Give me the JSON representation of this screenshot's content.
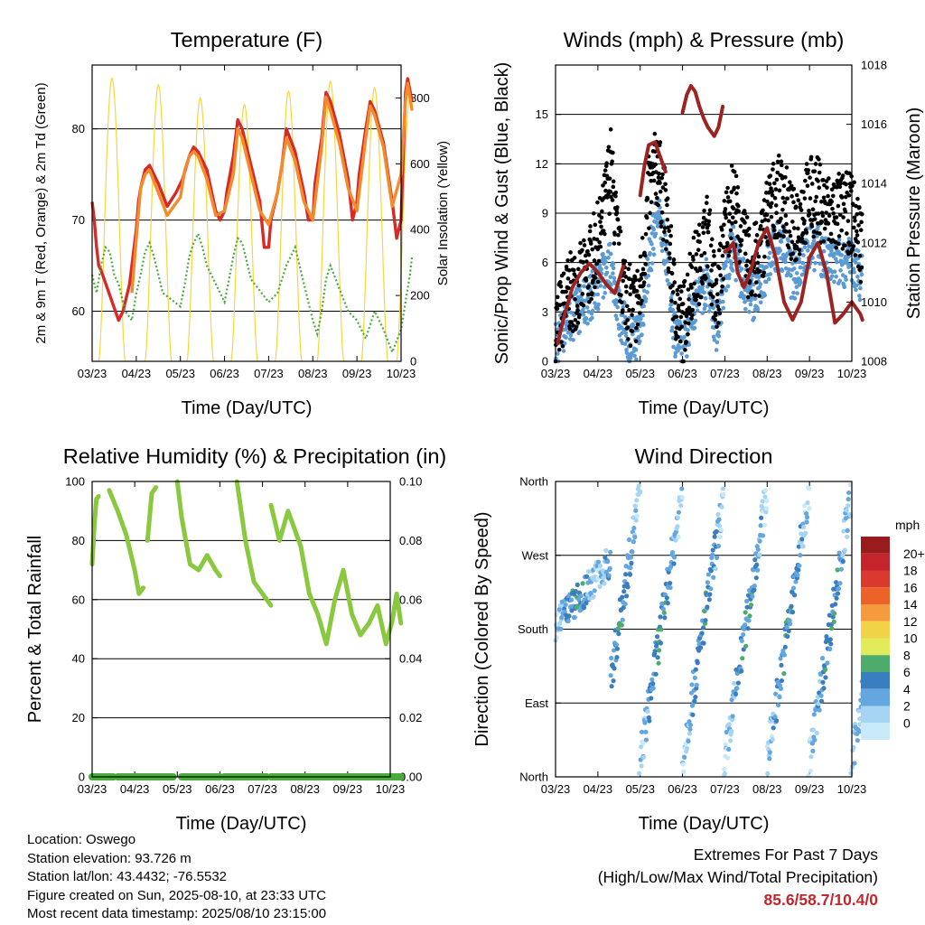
{
  "chart_data": [
    {
      "id": "temp",
      "type": "line",
      "title": "Temperature (F)",
      "xlabel": "Time (Day/UTC)",
      "ylabel": "2m & 9m T (Red, Orange) & 2m Td (Green)",
      "ylabel_right": "Solar Insolation (Yellow)",
      "x_ticks": [
        "03/23",
        "04/23",
        "05/23",
        "06/23",
        "07/23",
        "08/23",
        "09/23",
        "10/23"
      ],
      "ylim": [
        54.5,
        87
      ],
      "y_ticks": [
        60,
        70,
        80
      ],
      "ylim_right": [
        0,
        900
      ],
      "y_ticks_right": [
        0,
        200,
        400,
        600,
        800
      ],
      "grid": "horizontal",
      "series": [
        {
          "key": "t2m",
          "color": "#d62a27",
          "x": [
            0,
            0.05,
            0.1,
            0.15,
            0.2,
            0.6,
            0.7,
            0.85,
            1,
            1.05,
            1.1,
            1.2,
            1.3,
            1.5,
            1.7,
            1.9,
            2,
            2.05,
            2.2,
            2.3,
            2.4,
            2.6,
            2.8,
            2.9,
            3,
            3.05,
            3.2,
            3.3,
            3.4,
            3.6,
            3.8,
            3.9,
            4,
            4.05,
            4.2,
            4.3,
            4.4,
            4.6,
            4.8,
            4.9,
            5,
            5.05,
            5.2,
            5.3,
            5.4,
            5.6,
            5.8,
            5.9,
            6,
            6.05,
            6.2,
            6.3,
            6.4,
            6.6,
            6.8,
            6.9,
            7,
            7.05,
            7.1,
            7.15,
            7.25
          ],
          "values": [
            72,
            70,
            67,
            65,
            64.5,
            59,
            60,
            63,
            69,
            72,
            73.5,
            75.5,
            76,
            74,
            71.5,
            73,
            74,
            74.5,
            77,
            78,
            77.5,
            75.5,
            71,
            70,
            71,
            73,
            77,
            81,
            80,
            76,
            72,
            67,
            67,
            70,
            73,
            76,
            80,
            77.5,
            73,
            70,
            70,
            74,
            79,
            84,
            83,
            79.5,
            74.5,
            70,
            72,
            75,
            80,
            83,
            82,
            78.5,
            72,
            68,
            70,
            77,
            84,
            85.5,
            83
          ]
        },
        {
          "key": "t9m",
          "color": "#f28b2c",
          "x": [
            0.9,
            1,
            1.1,
            1.2,
            1.3,
            1.5,
            1.7,
            2,
            2.1,
            2.2,
            2.3,
            2.4,
            2.6,
            2.8,
            3,
            3.2,
            3.3,
            3.4,
            3.6,
            3.8,
            4,
            4.2,
            4.3,
            4.4,
            4.6,
            4.8,
            5,
            5.2,
            5.3,
            5.4,
            5.6,
            5.8,
            6,
            6.2,
            6.3,
            6.4,
            6.6,
            6.8,
            7,
            7.1,
            7.15,
            7.25
          ],
          "values": [
            62,
            68,
            73.5,
            75,
            75.5,
            73,
            70.5,
            72.5,
            75.5,
            77,
            77.5,
            77,
            74.5,
            70.5,
            71,
            75,
            80,
            79,
            75,
            71,
            69.5,
            73,
            76,
            79,
            76.5,
            72,
            70,
            78,
            83.5,
            82,
            78.5,
            73.5,
            71,
            79,
            82.5,
            81.5,
            78,
            71.5,
            75,
            83,
            85,
            82
          ]
        },
        {
          "key": "td",
          "color": "#4aaa3c",
          "x": [
            0,
            0.1,
            0.2,
            0.3,
            0.4,
            0.5,
            0.6,
            0.75,
            0.9,
            1,
            1.1,
            1.2,
            1.3,
            1.4,
            1.5,
            1.6,
            2,
            2.1,
            2.2,
            2.3,
            2.4,
            2.5,
            2.6,
            3,
            3.1,
            3.2,
            3.3,
            3.4,
            3.5,
            3.6,
            4,
            4.2,
            4.4,
            4.6,
            4.8,
            5,
            5.1,
            5.2,
            5.3,
            5.4,
            5.6,
            5.8,
            6,
            6.2,
            6.4,
            6.6,
            6.8,
            7,
            7.1,
            7.2,
            7.25
          ],
          "values": [
            64,
            62,
            65,
            67,
            66.5,
            64,
            63,
            60,
            59,
            62,
            64,
            66.5,
            67.5,
            66,
            64,
            62,
            60.5,
            63,
            66,
            67.5,
            68.5,
            67,
            65,
            61,
            63.5,
            66,
            68,
            67.5,
            65.5,
            63.5,
            61,
            62,
            65,
            67,
            63,
            59,
            57.5,
            60,
            63.5,
            65,
            62.5,
            60,
            59,
            57,
            60,
            58,
            55.5,
            58,
            61,
            64,
            66
          ]
        }
      ],
      "solar": {
        "color": "#f7d53e",
        "peaks": [
          860,
          840,
          800,
          780,
          820,
          850,
          830,
          800
        ],
        "offsets": [
          0.45,
          1.5,
          2.45,
          3.45,
          4.45,
          5.4,
          6.4,
          7.2
        ]
      }
    },
    {
      "id": "wind",
      "type": "scatter",
      "title": "Winds (mph) & Pressure (mb)",
      "xlabel": "Time (Day/UTC)",
      "ylabel": "Sonic/Prop Wind & Gust (Blue, Black)",
      "ylabel_right": "Station Pressure (Maroon)",
      "x_ticks": [
        "03/23",
        "04/23",
        "05/23",
        "06/23",
        "07/23",
        "08/23",
        "09/23",
        "10/23"
      ],
      "ylim": [
        0,
        18
      ],
      "y_ticks": [
        0,
        3,
        6,
        9,
        12,
        15
      ],
      "ylim_right": [
        1008,
        1018
      ],
      "y_ticks_right": [
        1008,
        1010,
        1012,
        1014,
        1016,
        1018
      ],
      "grid": "horizontal",
      "gust_color": "#000000",
      "wind_color": "#5b9bd5",
      "gust_env": {
        "x": [
          0,
          0.3,
          0.7,
          1.1,
          1.3,
          1.5,
          1.8,
          2,
          2.2,
          2.4,
          2.6,
          2.8,
          3,
          3.2,
          3.4,
          3.6,
          3.8,
          4,
          4.2,
          4.4,
          4.6,
          4.8,
          5,
          5.2,
          5.4,
          5.6,
          5.8,
          6,
          6.2,
          6.4,
          6.6,
          6.8,
          7,
          7.25
        ],
        "values": [
          2,
          4,
          5,
          8,
          12,
          6,
          3,
          4,
          10,
          12,
          9,
          4,
          2,
          5,
          6,
          8,
          3,
          8,
          10,
          7,
          6,
          6,
          9,
          10,
          10,
          8,
          9,
          10,
          10,
          9,
          9,
          9,
          9,
          7
        ]
      },
      "wind_env": {
        "x": [
          0,
          0.3,
          0.7,
          1.1,
          1.3,
          1.5,
          1.8,
          2,
          2.2,
          2.4,
          2.6,
          2.8,
          3,
          3.2,
          3.4,
          3.6,
          3.8,
          4,
          4.2,
          4.4,
          4.6,
          4.8,
          5,
          5.2,
          5.4,
          5.6,
          5.8,
          6,
          6.2,
          6.4,
          6.6,
          6.8,
          7,
          7.25
        ],
        "values": [
          1,
          2.5,
          3.5,
          5,
          6,
          3,
          1,
          2,
          6,
          9,
          7,
          2,
          0.5,
          3,
          4,
          5,
          2,
          5,
          7,
          5,
          4,
          4,
          6,
          7,
          7,
          5,
          6,
          7,
          7,
          6,
          6,
          6,
          6,
          5
        ]
      },
      "pressure": {
        "color": "#9b2422",
        "segments": [
          {
            "x": [
              0,
              0.05,
              0.2,
              0.4,
              0.6,
              0.8,
              1,
              1.2,
              1.4,
              1.6
            ],
            "values": [
              1008.7,
              1008.6,
              1009.5,
              1010.5,
              1011,
              1011.3,
              1011,
              1010.6,
              1010.3,
              1011.2
            ]
          },
          {
            "x": [
              2,
              2.1,
              2.2,
              2.35,
              2.5,
              2.6
            ],
            "values": [
              1013.6,
              1014.6,
              1015.3,
              1015.4,
              1014.8,
              1014.4
            ]
          },
          {
            "x": [
              3,
              3.1,
              3.2,
              3.3,
              3.4,
              3.5,
              3.6,
              3.75,
              3.85,
              3.95
            ],
            "values": [
              1016.4,
              1017,
              1017.3,
              1017.1,
              1016.6,
              1016.2,
              1015.9,
              1015.6,
              1015.9,
              1016.6
            ]
          },
          {
            "x": [
              4,
              4.1,
              4.2,
              4.3,
              4.45,
              4.6,
              4.8,
              5,
              5.2,
              5.4,
              5.6,
              5.8,
              6,
              6.2,
              6.4,
              6.6,
              6.8,
              7,
              7.2,
              7.25
            ],
            "values": [
              1011.7,
              1011.8,
              1012,
              1011,
              1010.5,
              1011,
              1012,
              1012.5,
              1011.5,
              1010,
              1009.4,
              1010,
              1011.5,
              1012,
              1011,
              1009.3,
              1009.6,
              1010,
              1009.6,
              1009.4
            ]
          }
        ]
      }
    },
    {
      "id": "rh",
      "type": "line",
      "title": "Relative Humidity (%) & Precipitation (in)",
      "xlabel": "Time (Day/UTC)",
      "ylabel": "Percent & Total Rainfall",
      "x_ticks": [
        "03/23",
        "04/23",
        "05/23",
        "06/23",
        "07/23",
        "08/23",
        "09/23",
        "10/23"
      ],
      "ylim": [
        0,
        100
      ],
      "y_ticks": [
        0,
        20,
        40,
        60,
        80,
        100
      ],
      "ylim_right": [
        0,
        0.1
      ],
      "y_ticks_right": [
        "0.00",
        "0.02",
        "0.04",
        "0.06",
        "0.08",
        "0.10"
      ],
      "grid": "horizontal",
      "series": [
        {
          "key": "rh",
          "color": "#8ac840",
          "segments": [
            {
              "x": [
                0,
                0.05,
                0.1,
                0.15
              ],
              "values": [
                72,
                85,
                94,
                95
              ]
            },
            {
              "x": [
                0.4,
                0.6,
                0.8,
                1,
                1.1,
                1.2
              ],
              "values": [
                97,
                90,
                82,
                70,
                62,
                64
              ]
            },
            {
              "x": [
                1.3,
                1.4,
                1.5
              ],
              "values": [
                80,
                96,
                98
              ]
            },
            {
              "x": [
                2,
                2.1,
                2.3,
                2.5,
                2.7,
                2.9,
                3
              ],
              "values": [
                100,
                88,
                72,
                70,
                75,
                70,
                68
              ]
            },
            {
              "x": [
                3.4,
                3.6,
                3.8,
                4,
                4.2
              ],
              "values": [
                100,
                80,
                66,
                62,
                58
              ]
            },
            {
              "x": [
                4.2,
                4.4,
                4.6,
                4.9,
                5.1,
                5.3,
                5.5,
                5.7,
                5.9,
                6.1,
                6.3,
                6.5,
                6.7,
                6.9,
                7.05,
                7.15,
                7.25
              ],
              "values": [
                92,
                80,
                90,
                78,
                62,
                55,
                45,
                60,
                70,
                55,
                48,
                52,
                58,
                45,
                53,
                62,
                52
              ]
            }
          ]
        },
        {
          "key": "precip",
          "color": "#4aaa3c",
          "segments": [
            {
              "x": [
                0,
                0.5
              ],
              "values": [
                0,
                0
              ]
            },
            {
              "x": [
                0.6,
                1.9
              ],
              "values": [
                0,
                0
              ]
            },
            {
              "x": [
                2.1,
                3.0
              ],
              "values": [
                0,
                0
              ]
            },
            {
              "x": [
                3.1,
                4.1
              ],
              "values": [
                0,
                0
              ]
            },
            {
              "x": [
                4.2,
                7.25
              ],
              "values": [
                0,
                0
              ]
            }
          ]
        }
      ]
    },
    {
      "id": "dir",
      "type": "scatter",
      "title": "Wind Direction",
      "xlabel": "Time (Day/UTC)",
      "ylabel": "Direction (Colored By Speed)",
      "x_ticks": [
        "03/23",
        "04/23",
        "05/23",
        "06/23",
        "07/23",
        "08/23",
        "09/23",
        "10/23"
      ],
      "ylim": [
        0,
        360
      ],
      "y_ticks": [
        "North",
        "East",
        "South",
        "West",
        "North"
      ],
      "grid": "horizontal",
      "colorbar": {
        "unit": "mph",
        "labels": [
          "20+",
          "18",
          "16",
          "14",
          "12",
          "10",
          "8",
          "6",
          "4",
          "2",
          "0"
        ],
        "colors": [
          "#9a1b1e",
          "#c4242b",
          "#d93a2d",
          "#ec6228",
          "#f59a3d",
          "#f2d347",
          "#e1ea59",
          "#4dab6c",
          "#3a7ec0",
          "#64a6e0",
          "#a5d5f2",
          "#c8e9f8"
        ]
      }
    }
  ],
  "info": {
    "location": "Location: Oswego",
    "elevation": "Station elevation: 93.726 m",
    "latlon": "Station lat/lon: 43.4432; -76.5532",
    "created": "Figure created on Sun, 2025-08-10, at 23:33 UTC",
    "latest": "Most recent data timestamp: 2025/08/10 23:15:00"
  },
  "extremes": {
    "title": "Extremes For Past 7 Days",
    "subtitle": "(High/Low/Max Wind/Total Precipitation)",
    "values": "85.6/58.7/10.4/0"
  }
}
